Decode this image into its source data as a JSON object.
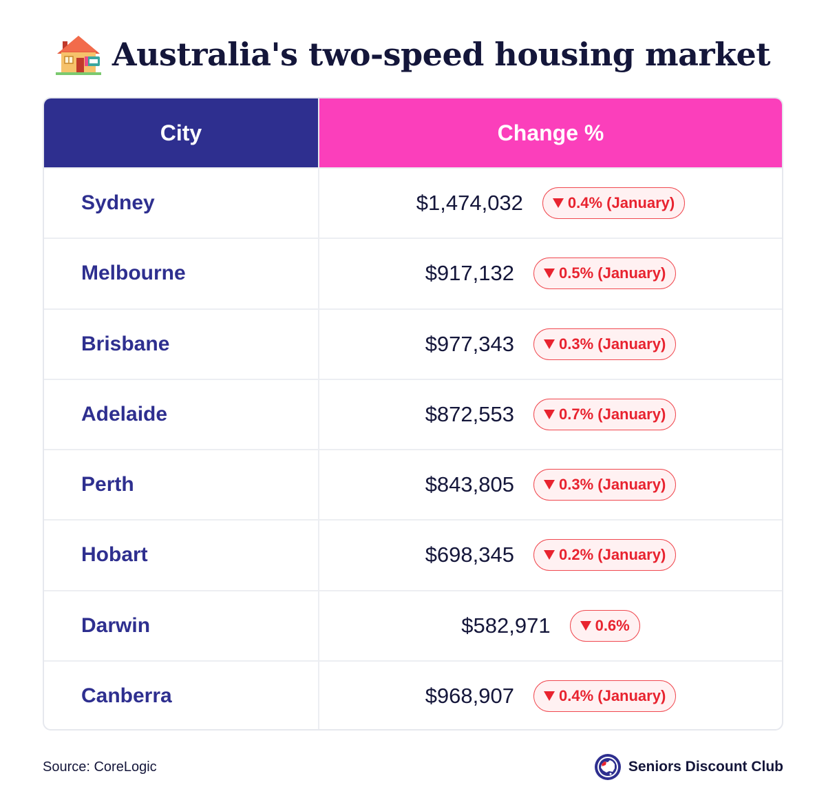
{
  "header": {
    "title": "Australia's two-speed housing market",
    "icon": "house-for-sale-icon"
  },
  "table": {
    "columns": [
      "City",
      "Change %"
    ],
    "rows": [
      {
        "city": "Sydney",
        "price": "$1,474,032",
        "change": "0.4% (January)"
      },
      {
        "city": "Melbourne",
        "price": "$917,132",
        "change": "0.5% (January)"
      },
      {
        "city": "Brisbane",
        "price": "$977,343",
        "change": "0.3% (January)"
      },
      {
        "city": "Adelaide",
        "price": "$872,553",
        "change": "0.7% (January)"
      },
      {
        "city": "Perth",
        "price": "$843,805",
        "change": "0.3% (January)"
      },
      {
        "city": "Hobart",
        "price": "$698,345",
        "change": "0.2% (January)"
      },
      {
        "city": "Darwin",
        "price": "$582,971",
        "change": "0.6%"
      },
      {
        "city": "Canberra",
        "price": "$968,907",
        "change": "0.4% (January)"
      }
    ]
  },
  "footer": {
    "source": "Source: CoreLogic",
    "brand": "Seniors Discount Club",
    "brand_icon": "australia-globe-logo-icon"
  },
  "colors": {
    "city_header": "#2e2f8f",
    "change_header": "#fb3fbb",
    "decline": "#e8232f",
    "decline_bg": "#fff1f2",
    "city_text": "#2e2f8f"
  }
}
